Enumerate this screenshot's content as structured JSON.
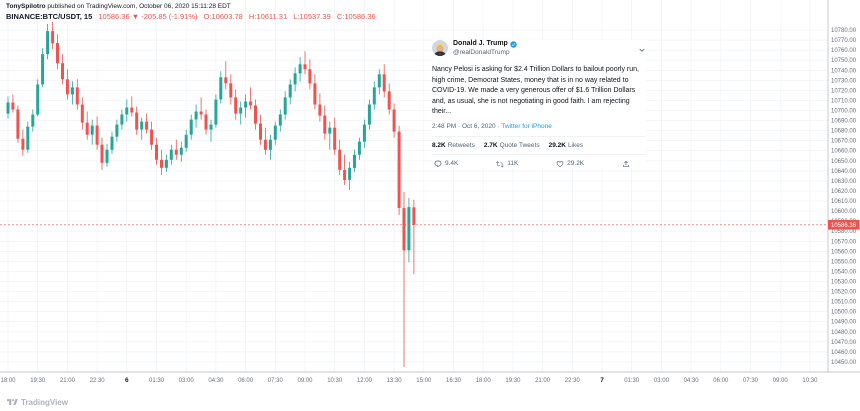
{
  "header": {
    "byline_author": "TonySpilotro",
    "byline_text": " published on TradingView.com, October 06, 2020 15:11:28 EDT",
    "symbol": "BINANCE:BTC/USDT, 15",
    "change": "10586.36 ▼ -205.85 (-1.91%)",
    "open": "O:10603.78",
    "high": "H:10611.31",
    "low": "L:10537.39",
    "close": "C:10586.36"
  },
  "tweet": {
    "name": "Donald J. Trump",
    "handle": "@realDonaldTrump",
    "body": "Nancy Pelosi is asking for $2.4 Trillion Dollars to bailout poorly run, high crime, Democrat States, money that is in no way related to COVID-19. We made a very generous offer of $1.6 Trillion Dollars and, as usual, she is not negotiating in good faith. I am rejecting their...",
    "timestamp": "2:48 PM · Oct 6, 2020 ·",
    "source": "Twitter for iPhone",
    "stats": [
      {
        "count": "8.2K",
        "label": "Retweets"
      },
      {
        "count": "2.7K",
        "label": "Quote Tweets"
      },
      {
        "count": "29.2K",
        "label": "Likes"
      }
    ],
    "actions": {
      "reply": "9.4K",
      "retweet": "11K",
      "like": "29.2K"
    }
  },
  "footer": {
    "logo_text": "TradingView"
  },
  "colors": {
    "up": "#26a69a",
    "down": "#ef5350",
    "twitter_blue": "#1d9bf0",
    "grid": "#eef0f4",
    "axis_border": "#b2b5be",
    "last_price_label": "#ef5350"
  },
  "chart_data": {
    "type": "candlestick",
    "symbol": "BINANCE:BTC/USDT",
    "interval": "15",
    "price_axis": {
      "min": 10440,
      "max": 10790,
      "tick_step": 10
    },
    "last_price": 10586.36,
    "time_labels": [
      "18:00",
      "19:30",
      "21:00",
      "22:30",
      "6",
      "01:30",
      "03:00",
      "04:30",
      "06:00",
      "07:30",
      "09:00",
      "10:30",
      "12:00",
      "13:30",
      "15:00",
      "16:30",
      "18:00",
      "19:30",
      "21:00",
      "22:30",
      "7",
      "01:30",
      "03:00",
      "04:30",
      "06:00",
      "07:30",
      "09:00",
      "10:30"
    ],
    "candles": [
      [
        10697,
        10714,
        10692,
        10708
      ],
      [
        10708,
        10716,
        10698,
        10701
      ],
      [
        10701,
        10705,
        10668,
        10672
      ],
      [
        10672,
        10681,
        10655,
        10661
      ],
      [
        10661,
        10689,
        10658,
        10684
      ],
      [
        10684,
        10701,
        10679,
        10696
      ],
      [
        10696,
        10731,
        10694,
        10726
      ],
      [
        10726,
        10762,
        10723,
        10756
      ],
      [
        10756,
        10786,
        10751,
        10779
      ],
      [
        10779,
        10788,
        10761,
        10767
      ],
      [
        10767,
        10776,
        10741,
        10747
      ],
      [
        10747,
        10756,
        10726,
        10731
      ],
      [
        10731,
        10741,
        10711,
        10716
      ],
      [
        10716,
        10729,
        10706,
        10723
      ],
      [
        10723,
        10731,
        10701,
        10706
      ],
      [
        10706,
        10713,
        10681,
        10688
      ],
      [
        10688,
        10699,
        10671,
        10676
      ],
      [
        10676,
        10691,
        10666,
        10685
      ],
      [
        10685,
        10694,
        10661,
        10666
      ],
      [
        10666,
        10673,
        10641,
        10648
      ],
      [
        10648,
        10667,
        10644,
        10661
      ],
      [
        10661,
        10679,
        10657,
        10674
      ],
      [
        10674,
        10691,
        10669,
        10686
      ],
      [
        10686,
        10701,
        10681,
        10696
      ],
      [
        10696,
        10711,
        10689,
        10703
      ],
      [
        10703,
        10714,
        10694,
        10698
      ],
      [
        10698,
        10704,
        10676,
        10681
      ],
      [
        10681,
        10693,
        10671,
        10689
      ],
      [
        10689,
        10697,
        10677,
        10681
      ],
      [
        10681,
        10689,
        10661,
        10666
      ],
      [
        10666,
        10673,
        10646,
        10651
      ],
      [
        10651,
        10661,
        10636,
        10643
      ],
      [
        10643,
        10656,
        10639,
        10651
      ],
      [
        10651,
        10666,
        10646,
        10661
      ],
      [
        10661,
        10671,
        10651,
        10656
      ],
      [
        10656,
        10669,
        10649,
        10663
      ],
      [
        10663,
        10681,
        10659,
        10676
      ],
      [
        10676,
        10696,
        10671,
        10691
      ],
      [
        10691,
        10706,
        10683,
        10699
      ],
      [
        10699,
        10713,
        10691,
        10696
      ],
      [
        10696,
        10701,
        10676,
        10681
      ],
      [
        10681,
        10691,
        10669,
        10686
      ],
      [
        10686,
        10716,
        10683,
        10711
      ],
      [
        10711,
        10739,
        10707,
        10733
      ],
      [
        10733,
        10749,
        10721,
        10727
      ],
      [
        10727,
        10736,
        10706,
        10713
      ],
      [
        10713,
        10721,
        10691,
        10697
      ],
      [
        10697,
        10709,
        10686,
        10703
      ],
      [
        10703,
        10716,
        10693,
        10709
      ],
      [
        10709,
        10723,
        10701,
        10705
      ],
      [
        10705,
        10711,
        10681,
        10687
      ],
      [
        10687,
        10696,
        10666,
        10671
      ],
      [
        10671,
        10683,
        10656,
        10661
      ],
      [
        10661,
        10676,
        10651,
        10671
      ],
      [
        10671,
        10689,
        10666,
        10685
      ],
      [
        10685,
        10701,
        10679,
        10696
      ],
      [
        10696,
        10719,
        10691,
        10713
      ],
      [
        10713,
        10731,
        10706,
        10726
      ],
      [
        10726,
        10743,
        10719,
        10737
      ],
      [
        10737,
        10753,
        10729,
        10746
      ],
      [
        10746,
        10759,
        10736,
        10741
      ],
      [
        10741,
        10751,
        10721,
        10727
      ],
      [
        10727,
        10736,
        10701,
        10706
      ],
      [
        10706,
        10717,
        10689,
        10695
      ],
      [
        10695,
        10705,
        10671,
        10677
      ],
      [
        10677,
        10689,
        10661,
        10683
      ],
      [
        10683,
        10693,
        10656,
        10661
      ],
      [
        10661,
        10671,
        10636,
        10641
      ],
      [
        10641,
        10656,
        10626,
        10631
      ],
      [
        10631,
        10649,
        10621,
        10643
      ],
      [
        10643,
        10661,
        10639,
        10656
      ],
      [
        10656,
        10673,
        10651,
        10669
      ],
      [
        10669,
        10691,
        10663,
        10686
      ],
      [
        10686,
        10711,
        10681,
        10706
      ],
      [
        10706,
        10729,
        10701,
        10723
      ],
      [
        10723,
        10741,
        10716,
        10736
      ],
      [
        10736,
        10746,
        10713,
        10719
      ],
      [
        10719,
        10727,
        10696,
        10701
      ],
      [
        10701,
        10707,
        10673,
        10679
      ],
      [
        10679,
        10685,
        10596,
        10603
      ],
      [
        10603,
        10619,
        10445,
        10561
      ],
      [
        10561,
        10613,
        10549,
        10604
      ],
      [
        10603.78,
        10611.31,
        10537.39,
        10586.36
      ]
    ]
  }
}
